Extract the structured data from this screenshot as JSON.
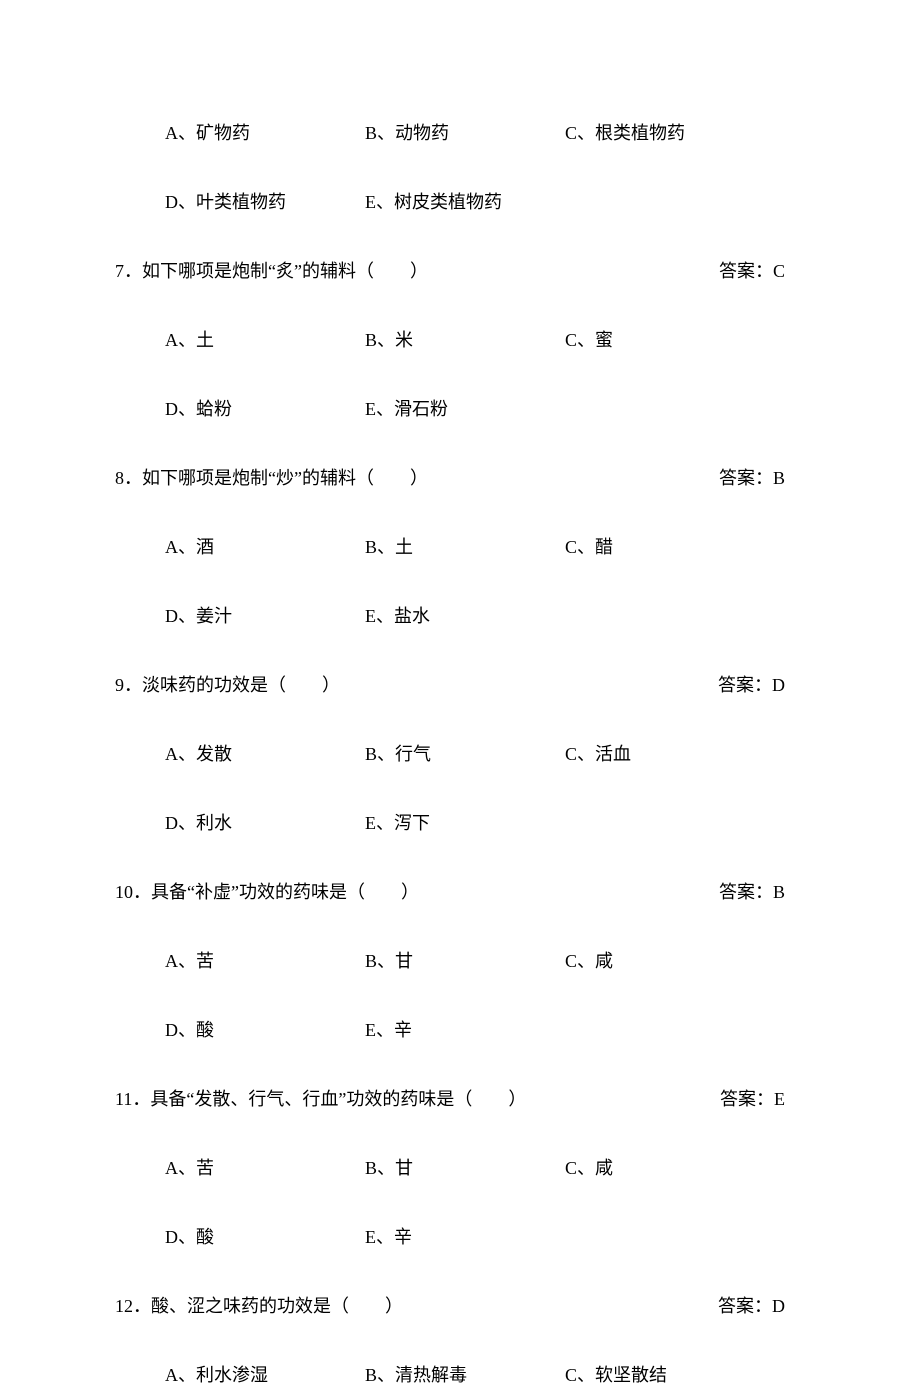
{
  "font_size_pt": 18,
  "text_color": "#000000",
  "background_color": "#ffffff",
  "preOptions": {
    "row1": {
      "a": "A、矿物药",
      "b": "B、动物药",
      "c": "C、根类植物药"
    },
    "row2": {
      "d": "D、叶类植物药",
      "e": "E、树皮类植物药"
    }
  },
  "questions": [
    {
      "num": "7．",
      "text": "如下哪项是炮制“炙”的辅料（　　）",
      "answer": "答案：C",
      "row1": {
        "a": "A、土",
        "b": "B、米",
        "c": "C、蜜"
      },
      "row2": {
        "d": "D、蛤粉",
        "e": "E、滑石粉"
      }
    },
    {
      "num": "8．",
      "text": "如下哪项是炮制“炒”的辅料（　　）",
      "answer": "答案：B",
      "row1": {
        "a": "A、酒",
        "b": "B、土",
        "c": "C、醋"
      },
      "row2": {
        "d": "D、姜汁",
        "e": "E、盐水"
      }
    },
    {
      "num": "9．",
      "text": "淡味药的功效是（　　）",
      "answer": "答案：D",
      "row1": {
        "a": "A、发散",
        "b": "B、行气",
        "c": "C、活血"
      },
      "row2": {
        "d": "D、利水",
        "e": "E、泻下"
      }
    },
    {
      "num": "10．",
      "text": "具备“补虚”功效的药味是（　　）",
      "answer": "答案：B",
      "row1": {
        "a": "A、苦",
        "b": "B、甘",
        "c": "C、咸"
      },
      "row2": {
        "d": "D、酸",
        "e": "E、辛"
      }
    },
    {
      "num": "11．",
      "text": "具备“发散、行气、行血”功效的药味是（　　）",
      "answer": "答案：E",
      "row1": {
        "a": "A、苦",
        "b": "B、甘",
        "c": "C、咸"
      },
      "row2": {
        "d": "D、酸",
        "e": "E、辛"
      }
    },
    {
      "num": "12．",
      "text": "酸、涩之味药的功效是（　　）",
      "answer": "答案：D",
      "row1": {
        "a": "A、利水渗湿",
        "b": "B、清热解毒",
        "c": "C、软坚散结"
      },
      "row2": null
    }
  ]
}
